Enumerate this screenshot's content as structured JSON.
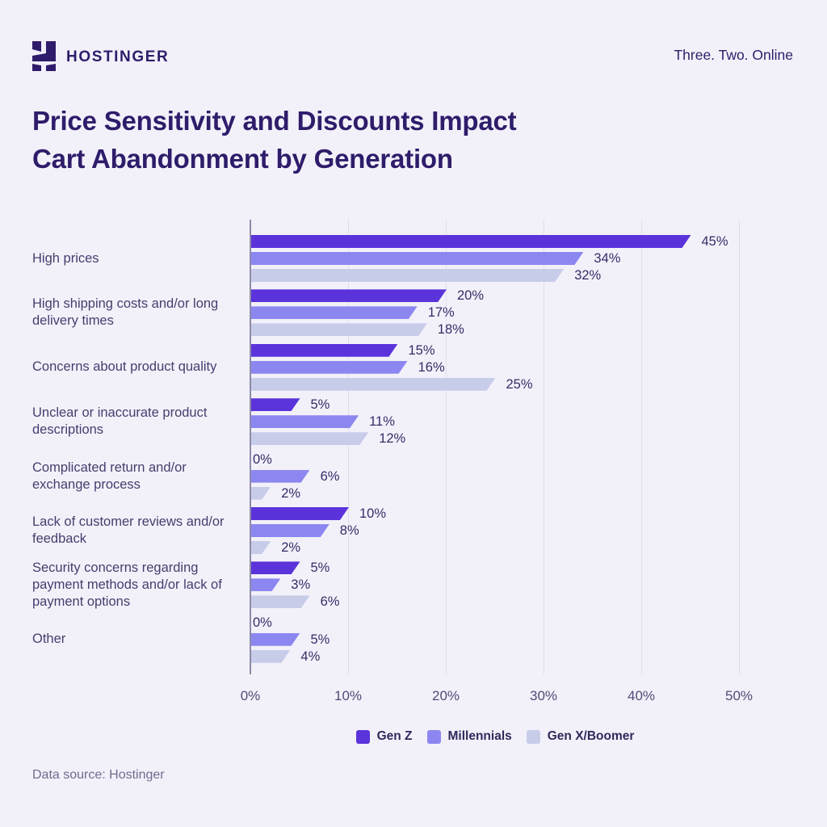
{
  "header": {
    "brand": "HOSTINGER",
    "tagline": "Three. Two. Online",
    "logo_color": "#2F1C6A"
  },
  "title": {
    "line1": "Price Sensitivity and Discounts Impact",
    "line2": "Cart Abandonment by Generation"
  },
  "chart_data": {
    "type": "bar",
    "orientation": "horizontal",
    "title": "Price Sensitivity and Discounts Impact Cart Abandonment by Generation",
    "categories": [
      "High prices",
      "High shipping costs and/or long delivery times",
      "Concerns about product quality",
      "Unclear or inaccurate product descriptions",
      "Complicated return and/or exchange process",
      "Lack of customer reviews and/or feedback",
      "Security concerns regarding payment methods and/or lack of payment options",
      "Other"
    ],
    "series": [
      {
        "name": "Gen Z",
        "color": "#5B33DA",
        "values": [
          45,
          20,
          15,
          5,
          0,
          10,
          5,
          0
        ]
      },
      {
        "name": "Millennials",
        "color": "#8C87F0",
        "values": [
          34,
          17,
          16,
          11,
          6,
          8,
          3,
          5
        ]
      },
      {
        "name": "Gen X/Boomer",
        "color": "#C7CCE9",
        "values": [
          32,
          18,
          25,
          12,
          2,
          2,
          6,
          4
        ]
      }
    ],
    "value_suffix": "%",
    "x_ticks": [
      "0%",
      "10%",
      "20%",
      "30%",
      "40%",
      "50%"
    ],
    "xlim": [
      0,
      50
    ],
    "xlabel": "",
    "ylabel": "",
    "grid": true,
    "legend_position": "bottom"
  },
  "footer": {
    "source": "Data source: Hostinger"
  }
}
